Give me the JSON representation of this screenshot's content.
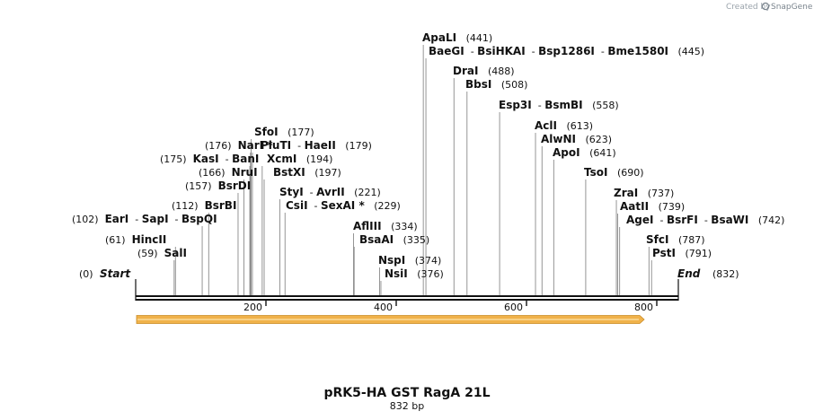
{
  "credit": {
    "prefix": "Created by",
    "brand": "SnapGene"
  },
  "map": {
    "title": "pRK5-HA GST RagA 21L",
    "subtitle": "832 bp",
    "length": 832,
    "start_label": "Start",
    "start_pos": "(0)",
    "end_label": "End",
    "end_pos": "(832)",
    "ticks": [
      "200",
      "400",
      "600",
      "800"
    ],
    "feature_arrow_color": "#f0b24a"
  },
  "sites": [
    {
      "pos": 59,
      "label": "(59)",
      "names": [
        "SalI"
      ],
      "side": "left"
    },
    {
      "pos": 61,
      "label": "(61)",
      "names": [
        "HincII"
      ],
      "side": "left"
    },
    {
      "pos": 102,
      "label": "(102)",
      "names": [
        "EarI",
        "SapI",
        "BspQI"
      ],
      "side": "left"
    },
    {
      "pos": 112,
      "label": "(112)",
      "names": [
        "BsrBI"
      ],
      "side": "left"
    },
    {
      "pos": 157,
      "label": "(157)",
      "names": [
        "BsrDI"
      ],
      "side": "left"
    },
    {
      "pos": 166,
      "label": "(166)",
      "names": [
        "NruI"
      ],
      "side": "left"
    },
    {
      "pos": 175,
      "label": "(175)",
      "names": [
        "KasI",
        "BanI"
      ],
      "side": "left"
    },
    {
      "pos": 176,
      "label": "(176)",
      "names": [
        "NarI *"
      ],
      "side": "left"
    },
    {
      "pos": 177,
      "label": "(177)",
      "names": [
        "SfoI"
      ],
      "side": "right"
    },
    {
      "pos": 179,
      "label": "(179)",
      "names": [
        "PluTI",
        "HaeII"
      ],
      "side": "right"
    },
    {
      "pos": 194,
      "label": "(194)",
      "names": [
        "XcmI"
      ],
      "side": "right"
    },
    {
      "pos": 197,
      "label": "(197)",
      "names": [
        "BstXI"
      ],
      "side": "right"
    },
    {
      "pos": 221,
      "label": "(221)",
      "names": [
        "StyI",
        "AvrII"
      ],
      "side": "right"
    },
    {
      "pos": 229,
      "label": "(229)",
      "names": [
        "CsiI",
        "SexAI *"
      ],
      "side": "right"
    },
    {
      "pos": 334,
      "label": "(334)",
      "names": [
        "AflIII"
      ],
      "side": "right"
    },
    {
      "pos": 335,
      "label": "(335)",
      "names": [
        "BsaAI"
      ],
      "side": "right"
    },
    {
      "pos": 374,
      "label": "(374)",
      "names": [
        "NspI"
      ],
      "side": "right"
    },
    {
      "pos": 376,
      "label": "(376)",
      "names": [
        "NsiI"
      ],
      "side": "right"
    },
    {
      "pos": 441,
      "label": "(441)",
      "names": [
        "ApaLI"
      ],
      "side": "right"
    },
    {
      "pos": 445,
      "label": "(445)",
      "names": [
        "BaeGI",
        "BsiHKAI",
        "Bsp1286I",
        "Bme1580I"
      ],
      "side": "right"
    },
    {
      "pos": 488,
      "label": "(488)",
      "names": [
        "DraI"
      ],
      "side": "right"
    },
    {
      "pos": 508,
      "label": "(508)",
      "names": [
        "BbsI"
      ],
      "side": "right"
    },
    {
      "pos": 558,
      "label": "(558)",
      "names": [
        "Esp3I",
        "BsmBI"
      ],
      "side": "right"
    },
    {
      "pos": 613,
      "label": "(613)",
      "names": [
        "AclI"
      ],
      "side": "right"
    },
    {
      "pos": 623,
      "label": "(623)",
      "names": [
        "AlwNI"
      ],
      "side": "right"
    },
    {
      "pos": 641,
      "label": "(641)",
      "names": [
        "ApoI"
      ],
      "side": "right"
    },
    {
      "pos": 690,
      "label": "(690)",
      "names": [
        "TsoI"
      ],
      "side": "right"
    },
    {
      "pos": 737,
      "label": "(737)",
      "names": [
        "ZraI"
      ],
      "side": "right"
    },
    {
      "pos": 739,
      "label": "(739)",
      "names": [
        "AatII"
      ],
      "side": "right"
    },
    {
      "pos": 742,
      "label": "(742)",
      "names": [
        "AgeI",
        "BsrFI",
        "BsaWI"
      ],
      "side": "right"
    },
    {
      "pos": 787,
      "label": "(787)",
      "names": [
        "SfcI"
      ],
      "side": "right"
    },
    {
      "pos": 791,
      "label": "(791)",
      "names": [
        "PstI"
      ],
      "side": "right"
    }
  ]
}
